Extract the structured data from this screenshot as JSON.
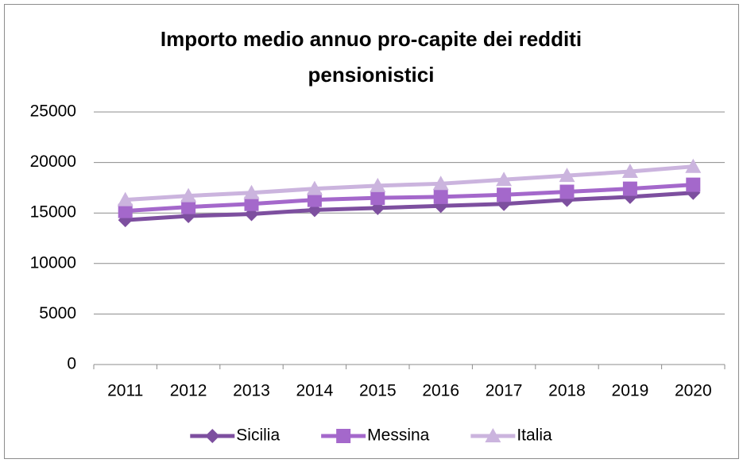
{
  "chart_data": {
    "type": "line",
    "title": "Importo medio annuo pro-capite dei redditi pensionistici",
    "categories": [
      "2011",
      "2012",
      "2013",
      "2014",
      "2015",
      "2016",
      "2017",
      "2018",
      "2019",
      "2020"
    ],
    "series": [
      {
        "name": "Sicilia",
        "color": "#7d4f9f",
        "marker": "diamond",
        "values": [
          14300,
          14700,
          14900,
          15300,
          15500,
          15700,
          15900,
          16300,
          16600,
          17000
        ]
      },
      {
        "name": "Messina",
        "color": "#a468cb",
        "marker": "square",
        "values": [
          15200,
          15600,
          15900,
          16300,
          16500,
          16600,
          16800,
          17100,
          17400,
          17800
        ]
      },
      {
        "name": "Italia",
        "color": "#cbb4de",
        "marker": "triangle",
        "values": [
          16300,
          16700,
          17000,
          17400,
          17700,
          17900,
          18300,
          18700,
          19100,
          19600
        ]
      }
    ],
    "ylim": [
      0,
      25000
    ],
    "yticks": [
      0,
      5000,
      10000,
      15000,
      20000,
      25000
    ],
    "grid": true,
    "legend": "bottom"
  }
}
